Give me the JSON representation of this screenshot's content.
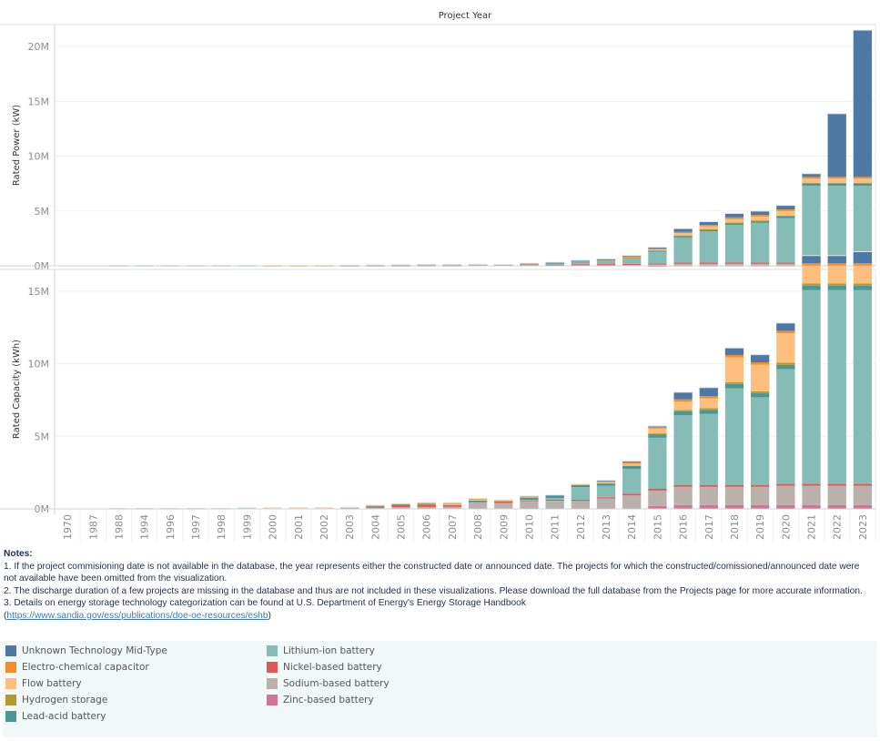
{
  "chart_data": [
    {
      "type": "bar",
      "stacked": true,
      "title": "Project Year",
      "xlabel": "",
      "ylabel": "Rated Power (kW)",
      "ylim": [
        0,
        22000000
      ],
      "yticks": [
        "0M",
        "5M",
        "10M",
        "15M",
        "20M"
      ],
      "ytick_values": [
        0,
        5000000,
        10000000,
        15000000,
        20000000
      ],
      "grid": true,
      "categories": [
        "1970",
        "1987",
        "1988",
        "1994",
        "1996",
        "1997",
        "1998",
        "1999",
        "2000",
        "2001",
        "2002",
        "2003",
        "2004",
        "2005",
        "2006",
        "2007",
        "2008",
        "2009",
        "2010",
        "2011",
        "2012",
        "2013",
        "2014",
        "2015",
        "2016",
        "2017",
        "2018",
        "2019",
        "2020",
        "2021",
        "2022",
        "2023"
      ],
      "series": [
        {
          "name": "Zinc-based battery",
          "values": [
            0,
            0,
            0,
            0,
            0,
            0,
            0,
            0,
            0,
            0,
            0,
            0,
            0,
            0,
            0,
            0,
            0,
            0,
            0,
            0,
            0,
            0,
            0,
            20000,
            40000,
            40000,
            40000,
            40000,
            40000,
            50000,
            50000,
            50000
          ]
        },
        {
          "name": "Sodium-based battery",
          "values": [
            0,
            0,
            0,
            0,
            0,
            0,
            0,
            0,
            0,
            0,
            0,
            10000,
            20000,
            20000,
            30000,
            30000,
            60000,
            60000,
            70000,
            80000,
            100000,
            110000,
            120000,
            130000,
            140000,
            140000,
            140000,
            140000,
            140000,
            150000,
            150000,
            150000
          ]
        },
        {
          "name": "Nickel-based battery",
          "values": [
            0,
            0,
            0,
            0,
            0,
            0,
            0,
            0,
            0,
            0,
            0,
            50000,
            60000,
            70000,
            50000,
            50000,
            20000,
            20000,
            40000,
            40000,
            50000,
            50000,
            60000,
            80000,
            130000,
            130000,
            130000,
            130000,
            130000,
            180000,
            180000,
            180000
          ]
        },
        {
          "name": "Lithium-ion battery",
          "values": [
            0,
            0,
            0,
            0,
            0,
            0,
            0,
            0,
            0,
            0,
            0,
            0,
            0,
            0,
            0,
            0,
            0,
            0,
            20000,
            60000,
            190000,
            280000,
            470000,
            1050000,
            2270000,
            2840000,
            3410000,
            3600000,
            4030000,
            6920000,
            6920000,
            6920000
          ]
        },
        {
          "name": "Lead-acid battery",
          "values": [
            0,
            0,
            50000,
            50000,
            50000,
            50000,
            50000,
            50000,
            0,
            0,
            0,
            10000,
            10000,
            10000,
            10000,
            10000,
            20000,
            20000,
            30000,
            60000,
            70000,
            90000,
            120000,
            130000,
            140000,
            140000,
            150000,
            150000,
            170000,
            180000,
            180000,
            180000
          ]
        },
        {
          "name": "Hydrogen storage",
          "values": [
            0,
            0,
            0,
            0,
            0,
            0,
            0,
            0,
            0,
            0,
            0,
            0,
            0,
            0,
            0,
            0,
            0,
            0,
            0,
            0,
            0,
            0,
            0,
            20000,
            50000,
            60000,
            80000,
            80000,
            80000,
            90000,
            90000,
            90000
          ]
        },
        {
          "name": "Flow battery",
          "values": [
            0,
            0,
            0,
            0,
            0,
            0,
            0,
            0,
            20000,
            20000,
            20000,
            0,
            0,
            0,
            0,
            0,
            0,
            0,
            10000,
            10000,
            20000,
            30000,
            40000,
            60000,
            200000,
            250000,
            320000,
            350000,
            400000,
            380000,
            380000,
            380000
          ]
        },
        {
          "name": "Electro-chemical capacitor",
          "values": [
            0,
            0,
            0,
            0,
            0,
            0,
            0,
            0,
            0,
            0,
            0,
            0,
            0,
            10000,
            40000,
            40000,
            30000,
            20000,
            40000,
            10000,
            20000,
            30000,
            60000,
            100000,
            120000,
            130000,
            150000,
            150000,
            150000,
            160000,
            160000,
            160000
          ]
        },
        {
          "name": "Unknown Technology Mid-Type",
          "values": [
            0,
            0,
            0,
            0,
            0,
            0,
            0,
            0,
            0,
            0,
            0,
            0,
            0,
            0,
            0,
            0,
            0,
            0,
            20000,
            60000,
            50000,
            40000,
            60000,
            110000,
            300000,
            300000,
            350000,
            350000,
            370000,
            300000,
            5760000,
            13380000
          ]
        }
      ]
    },
    {
      "type": "bar",
      "stacked": true,
      "title": "",
      "xlabel": "",
      "ylabel": "Rated Capacity (kWh)",
      "ylim": [
        0,
        16500000
      ],
      "yticks": [
        "0M",
        "5M",
        "10M",
        "15M"
      ],
      "ytick_values": [
        0,
        5000000,
        10000000,
        15000000
      ],
      "grid": true,
      "categories": [
        "1970",
        "1987",
        "1988",
        "1994",
        "1996",
        "1997",
        "1998",
        "1999",
        "2000",
        "2001",
        "2002",
        "2003",
        "2004",
        "2005",
        "2006",
        "2007",
        "2008",
        "2009",
        "2010",
        "2011",
        "2012",
        "2013",
        "2014",
        "2015",
        "2016",
        "2017",
        "2018",
        "2019",
        "2020",
        "2021",
        "2022",
        "2023"
      ],
      "series": [
        {
          "name": "Zinc-based battery",
          "values": [
            0,
            0,
            0,
            0,
            0,
            0,
            0,
            0,
            0,
            0,
            0,
            0,
            0,
            0,
            0,
            0,
            0,
            0,
            0,
            0,
            0,
            0,
            0,
            200000,
            260000,
            260000,
            260000,
            260000,
            260000,
            260000,
            260000,
            260000
          ]
        },
        {
          "name": "Sodium-based battery",
          "values": [
            0,
            0,
            0,
            0,
            0,
            0,
            0,
            0,
            0,
            0,
            0,
            40000,
            90000,
            110000,
            130000,
            140000,
            520000,
            460000,
            580000,
            600000,
            580000,
            740000,
            930000,
            1060000,
            1260000,
            1260000,
            1260000,
            1260000,
            1330000,
            1330000,
            1330000,
            1330000
          ]
        },
        {
          "name": "Nickel-based battery",
          "values": [
            0,
            0,
            0,
            0,
            0,
            0,
            0,
            0,
            0,
            0,
            0,
            40000,
            60000,
            150000,
            130000,
            150000,
            20000,
            30000,
            30000,
            40000,
            50000,
            60000,
            120000,
            120000,
            130000,
            130000,
            130000,
            130000,
            130000,
            130000,
            130000,
            130000
          ]
        },
        {
          "name": "Lithium-ion battery",
          "values": [
            0,
            0,
            0,
            0,
            0,
            0,
            0,
            0,
            0,
            0,
            0,
            0,
            0,
            0,
            0,
            0,
            0,
            0,
            20000,
            110000,
            870000,
            800000,
            1700000,
            3520000,
            4810000,
            4890000,
            6660000,
            6040000,
            7900000,
            13350000,
            13350000,
            13350000
          ]
        },
        {
          "name": "Lead-acid battery",
          "values": [
            0,
            0,
            40000,
            40000,
            40000,
            40000,
            40000,
            70000,
            0,
            0,
            0,
            20000,
            70000,
            30000,
            20000,
            20000,
            30000,
            30000,
            150000,
            100000,
            170000,
            150000,
            220000,
            260000,
            270000,
            280000,
            300000,
            290000,
            300000,
            310000,
            310000,
            310000
          ]
        },
        {
          "name": "Hydrogen storage",
          "values": [
            0,
            0,
            0,
            0,
            0,
            0,
            0,
            0,
            0,
            0,
            0,
            0,
            0,
            0,
            0,
            0,
            0,
            0,
            0,
            0,
            0,
            0,
            0,
            40000,
            80000,
            120000,
            120000,
            120000,
            160000,
            160000,
            160000,
            160000
          ]
        },
        {
          "name": "Flow battery",
          "values": [
            0,
            0,
            0,
            0,
            0,
            0,
            0,
            0,
            80000,
            80000,
            80000,
            20000,
            0,
            0,
            0,
            20000,
            80000,
            60000,
            70000,
            0,
            40000,
            140000,
            140000,
            340000,
            580000,
            680000,
            1710000,
            1840000,
            2030000,
            1230000,
            1230000,
            1230000
          ]
        },
        {
          "name": "Electro-chemical capacitor",
          "values": [
            0,
            0,
            0,
            0,
            0,
            0,
            0,
            0,
            0,
            0,
            0,
            0,
            30000,
            70000,
            150000,
            90000,
            60000,
            30000,
            40000,
            0,
            0,
            40000,
            100000,
            140000,
            160000,
            160000,
            160000,
            160000,
            160000,
            170000,
            170000,
            170000
          ]
        },
        {
          "name": "Unknown Technology Mid-Type",
          "values": [
            0,
            0,
            0,
            0,
            0,
            0,
            0,
            0,
            0,
            0,
            0,
            0,
            0,
            0,
            0,
            0,
            0,
            0,
            0,
            100000,
            0,
            30000,
            80000,
            30000,
            490000,
            580000,
            490000,
            530000,
            540000,
            520000,
            520000,
            780000
          ]
        }
      ]
    }
  ],
  "colors": {
    "Unknown Technology Mid-Type": "#4e79a7",
    "Electro-chemical capacitor": "#f28e2b",
    "Flow battery": "#ffbe7d",
    "Hydrogen storage": "#b6992d",
    "Lead-acid battery": "#499894",
    "Lithium-ion battery": "#86bcb6",
    "Nickel-based battery": "#e15759",
    "Sodium-based battery": "#bab0ac",
    "Zinc-based battery": "#d37295"
  },
  "header": {
    "column_title": "Project Year"
  },
  "notes": {
    "title": "Notes:",
    "line1": "1. If the project commisioning date is not available in the database, the year represents either the constructed date or announced date. The projects for which the constructed/comissioned/announced date were not available have been omitted from the visualization.",
    "line2": "2. The discharge duration of a few projects are missing in the database and thus are not included in these visualizations. Please download the full database from the Projects page for more accurate information.",
    "line3": "3. Details on energy storage technology categorization can be found at U.S. Department of Energy's Energy Storage Handbook",
    "link_open": "(",
    "link_text": "https://www.sandia.gov/ess/publications/doe-oe-resources/eshb",
    "link_close": ")"
  },
  "legend": {
    "items": [
      {
        "label": "Unknown Technology Mid-Type",
        "color": "#4e79a7"
      },
      {
        "label": "Electro-chemical capacitor",
        "color": "#f28e2b"
      },
      {
        "label": "Flow battery",
        "color": "#ffbe7d"
      },
      {
        "label": "Hydrogen storage",
        "color": "#b6992d"
      },
      {
        "label": "Lead-acid battery",
        "color": "#499894"
      },
      {
        "label": "Lithium-ion battery",
        "color": "#86bcb6"
      },
      {
        "label": "Nickel-based battery",
        "color": "#e15759"
      },
      {
        "label": "Sodium-based battery",
        "color": "#bab0ac"
      },
      {
        "label": "Zinc-based battery",
        "color": "#d37295"
      }
    ]
  }
}
